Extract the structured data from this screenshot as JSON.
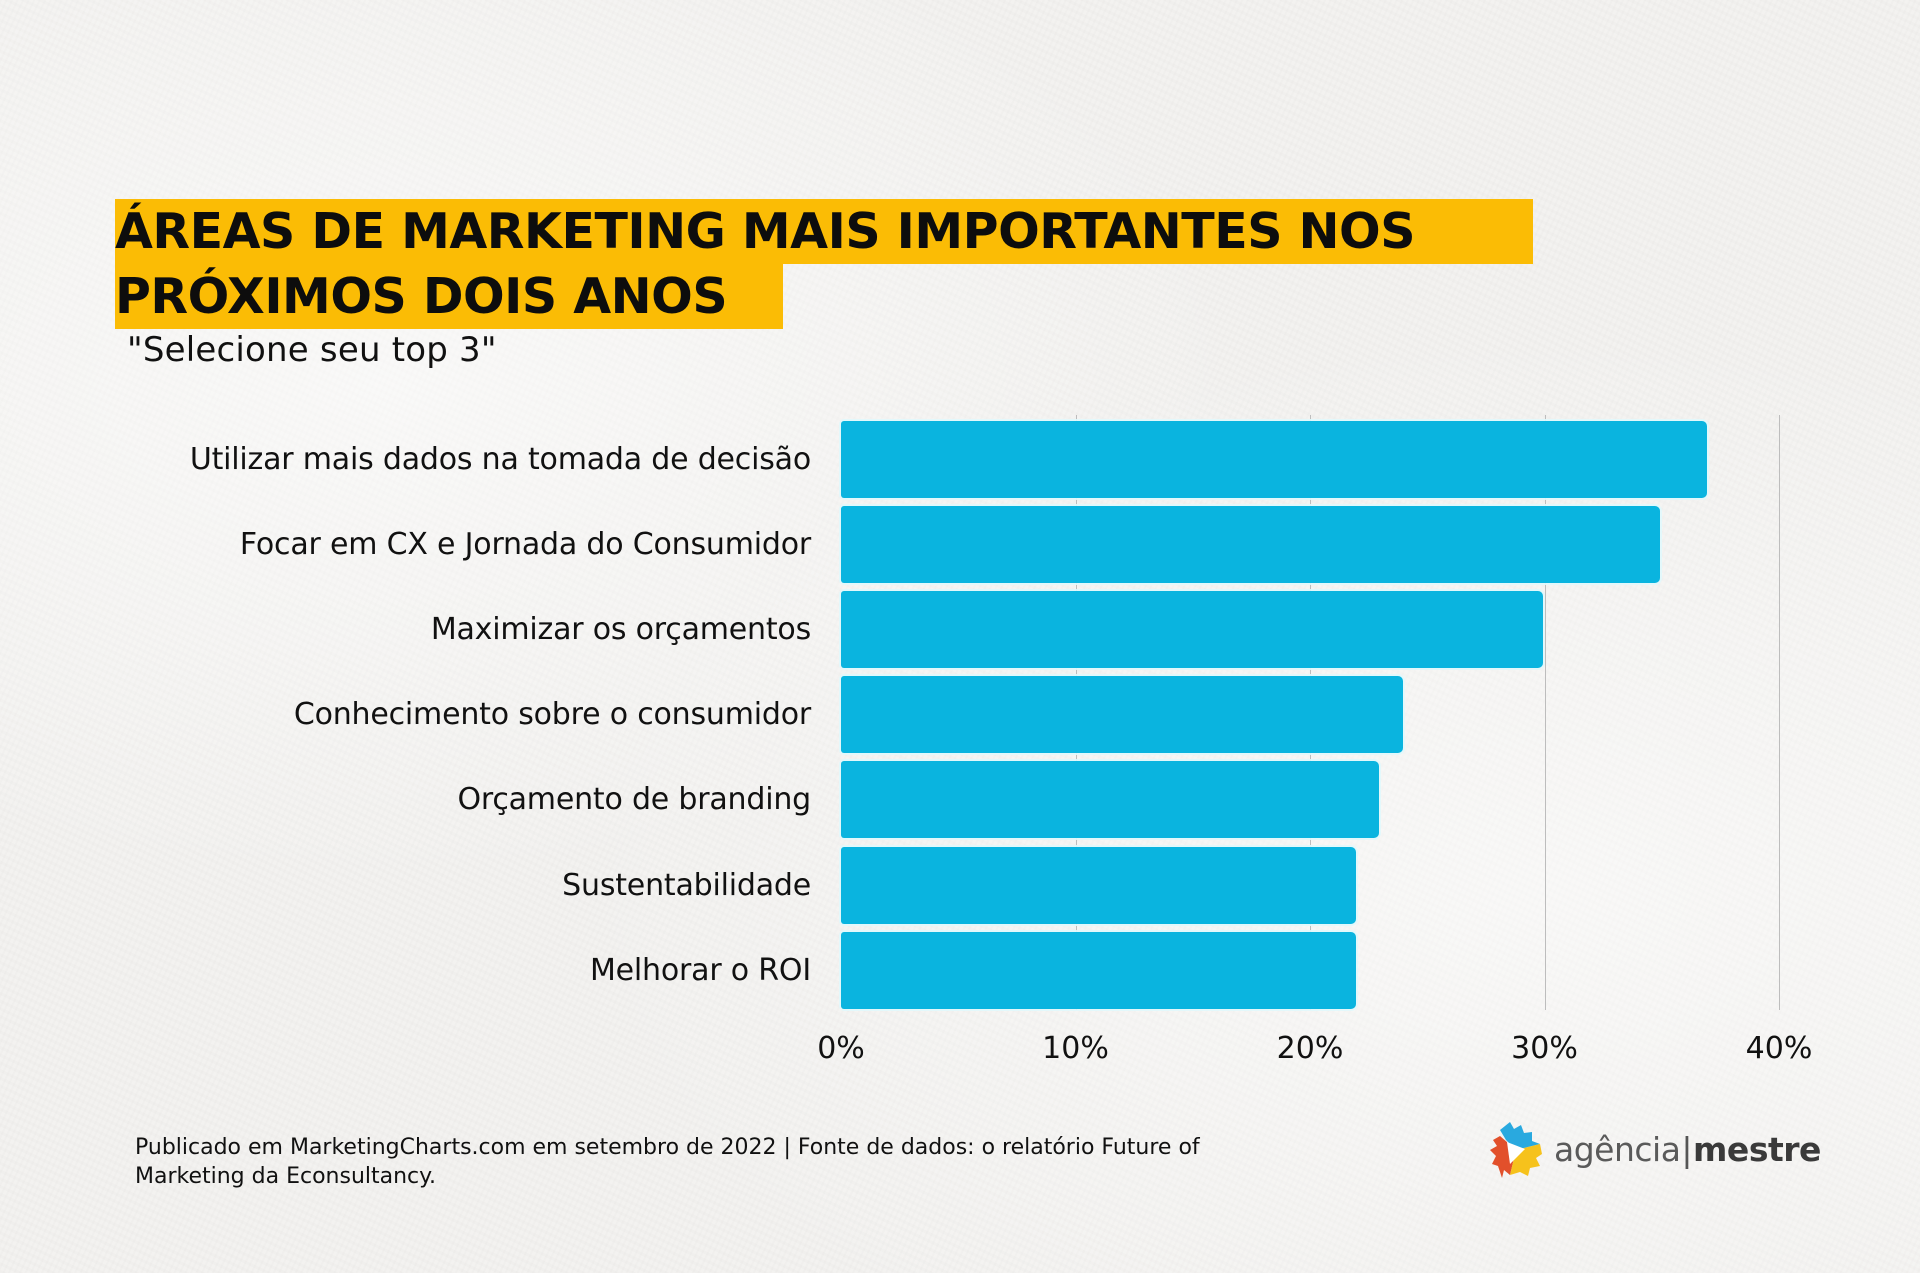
{
  "title": {
    "line1": "ÁREAS DE MARKETING MAIS IMPORTANTES NOS",
    "line2": "PRÓXIMOS DOIS ANOS",
    "highlight_color": "#fbbc05"
  },
  "subtitle": "\"Selecione seu top 3\"",
  "colors": {
    "bar": "#0ab4df",
    "gridline": "#bdbdbd",
    "text": "#111111"
  },
  "chart_data": {
    "type": "bar",
    "orientation": "horizontal",
    "title": "ÁREAS DE MARKETING MAIS IMPORTANTES NOS PRÓXIMOS DOIS ANOS",
    "subtitle": "\"Selecione seu top 3\"",
    "categories": [
      "Utilizar mais dados na tomada de decisão",
      "Focar em CX e Jornada do Consumidor",
      "Maximizar os orçamentos",
      "Conhecimento sobre o consumidor",
      "Orçamento de branding",
      "Sustentabilidade",
      "Melhorar o ROI"
    ],
    "values": [
      37,
      35,
      30,
      24,
      23,
      22,
      22
    ],
    "unit": "%",
    "xlabel": "",
    "ylabel": "",
    "xlim": [
      0,
      40
    ],
    "x_ticks": [
      "0%",
      "10%",
      "20%",
      "30%",
      "40%"
    ],
    "grid": "vertical",
    "legend": "none",
    "bar_color": "#0ab4df"
  },
  "footer": {
    "line1": "Publicado em MarketingCharts.com em setembro de 2022 | Fonte de dados: o relatório Future of",
    "line2": "Marketing da Econsultancy."
  },
  "logo": {
    "icon": "agencia-mestre-logo-icon",
    "text_light": "agência",
    "separator": "|",
    "text_bold": "mestre",
    "colors": {
      "blue": "#29a9df",
      "red": "#e2502b",
      "yellow": "#f6c21c"
    }
  }
}
